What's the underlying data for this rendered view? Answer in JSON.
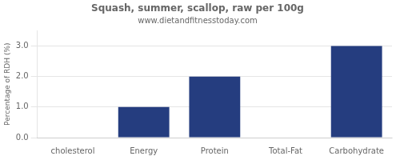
{
  "chart_data": {
    "type": "bar",
    "title": "Squash, summer, scallop, raw per 100g",
    "subtitle": "www.dietandfitnesstoday.com",
    "categories": [
      "cholesterol",
      "Energy",
      "Protein",
      "Total-Fat",
      "Carbohydrate"
    ],
    "values": [
      0.0,
      1.0,
      2.0,
      0.0,
      3.0
    ],
    "color": "#253d7f",
    "ylabel": "Percentage of RDH (%)",
    "ylim": [
      0.0,
      3.5
    ],
    "yticks": [
      {
        "value": 0.0,
        "label": "0.0"
      },
      {
        "value": 1.0,
        "label": "1.0"
      },
      {
        "value": 2.0,
        "label": "2.0"
      },
      {
        "value": 3.0,
        "label": "3.0"
      }
    ],
    "grid": true
  }
}
